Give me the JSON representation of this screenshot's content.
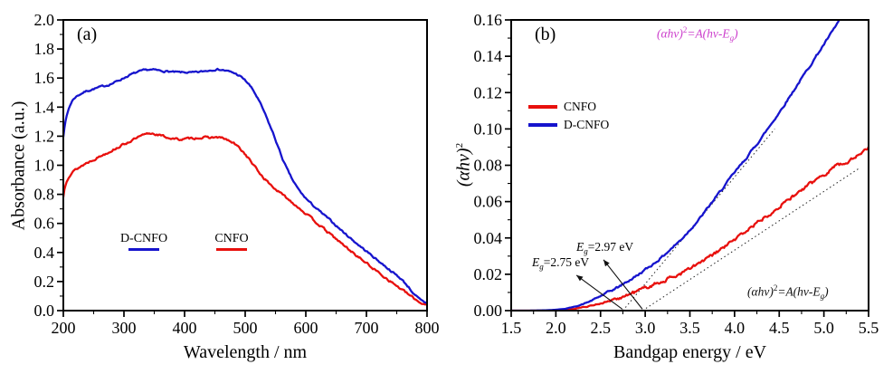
{
  "figure": {
    "background": "#ffffff",
    "frame_color": "#000000"
  },
  "colors": {
    "red": "#e8100d",
    "blue": "#1614cd",
    "magenta": "#cc3ecc",
    "black": "#111111"
  },
  "panel_a": {
    "letter": "(a)",
    "xlabel": "Wavelength / nm",
    "ylabel": "Absorbance (a.u.)",
    "legend": {
      "dcnfo": "D-CNFO",
      "cnfo": "CNFO"
    }
  },
  "panel_b": {
    "letter": "(b)",
    "xlabel": "Bandgap energy / eV",
    "ylabel_main": "(αhv)",
    "ylabel_sup": "2",
    "legend": {
      "cnfo": "CNFO",
      "dcnfo": "D-CNFO"
    },
    "formula_top": {
      "p1": "(αhv)",
      "sup": "2",
      "p2": "=A(hv-E",
      "sub": "g",
      "p3": ")"
    },
    "formula_bottom": {
      "p1": "(αhv)",
      "sup": "2",
      "p2": "=A(hv-E",
      "sub": "g",
      "p3": ")"
    },
    "eg1": {
      "sym": "E",
      "sub": "g",
      "val": "=2.75 eV"
    },
    "eg2": {
      "sym": "E",
      "sub": "g",
      "val": "=2.97 eV"
    }
  },
  "chart_data": [
    {
      "type": "line",
      "panel": "a",
      "title": "",
      "xlabel": "Wavelength / nm",
      "ylabel": "Absorbance (a.u.)",
      "xlim": [
        200,
        800
      ],
      "ylim": [
        0,
        2
      ],
      "grid": false,
      "legend_position": "inside lower-left",
      "x_major": [
        200,
        300,
        400,
        500,
        600,
        700,
        800
      ],
      "x_labels": [
        "200",
        "300",
        "400",
        "500",
        "600",
        "700",
        "800"
      ],
      "x_minor_step": 50,
      "y_major": [
        0,
        0.2,
        0.4,
        0.6,
        0.8,
        1.0,
        1.2,
        1.4,
        1.6,
        1.8,
        2.0
      ],
      "y_labels": [
        "0.0",
        "0.2",
        "0.4",
        "0.6",
        "0.8",
        "1.0",
        "1.2",
        "1.4",
        "1.6",
        "1.8",
        "2.0"
      ],
      "y_minor_step": 0.1,
      "series": [
        {
          "name": "CNFO",
          "color": "#e8100d",
          "noise": 0.0055,
          "seed": 13,
          "points": [
            [
              200,
              0.78
            ],
            [
              202,
              0.84
            ],
            [
              205,
              0.89
            ],
            [
              209,
              0.925
            ],
            [
              214,
              0.95
            ],
            [
              220,
              0.97
            ],
            [
              228,
              0.99
            ],
            [
              238,
              1.015
            ],
            [
              250,
              1.04
            ],
            [
              262,
              1.065
            ],
            [
              274,
              1.09
            ],
            [
              286,
              1.115
            ],
            [
              298,
              1.14
            ],
            [
              310,
              1.165
            ],
            [
              320,
              1.185
            ],
            [
              330,
              1.203
            ],
            [
              338,
              1.215
            ],
            [
              346,
              1.22
            ],
            [
              354,
              1.213
            ],
            [
              362,
              1.203
            ],
            [
              370,
              1.193
            ],
            [
              378,
              1.185
            ],
            [
              386,
              1.18
            ],
            [
              394,
              1.178
            ],
            [
              402,
              1.18
            ],
            [
              410,
              1.185
            ],
            [
              418,
              1.188
            ],
            [
              426,
              1.19
            ],
            [
              434,
              1.19
            ],
            [
              442,
              1.19
            ],
            [
              450,
              1.193
            ],
            [
              458,
              1.19
            ],
            [
              466,
              1.182
            ],
            [
              474,
              1.166
            ],
            [
              482,
              1.148
            ],
            [
              490,
              1.12
            ],
            [
              498,
              1.086
            ],
            [
              506,
              1.045
            ],
            [
              514,
              1.0
            ],
            [
              522,
              0.955
            ],
            [
              530,
              0.915
            ],
            [
              538,
              0.882
            ],
            [
              546,
              0.85
            ],
            [
              554,
              0.822
            ],
            [
              562,
              0.796
            ],
            [
              570,
              0.77
            ],
            [
              580,
              0.737
            ],
            [
              590,
              0.703
            ],
            [
              600,
              0.668
            ],
            [
              612,
              0.625
            ],
            [
              624,
              0.583
            ],
            [
              636,
              0.54
            ],
            [
              648,
              0.5
            ],
            [
              660,
              0.458
            ],
            [
              672,
              0.418
            ],
            [
              684,
              0.378
            ],
            [
              696,
              0.34
            ],
            [
              708,
              0.3
            ],
            [
              720,
              0.262
            ],
            [
              732,
              0.225
            ],
            [
              744,
              0.188
            ],
            [
              756,
              0.152
            ],
            [
              768,
              0.115
            ],
            [
              778,
              0.085
            ],
            [
              786,
              0.062
            ],
            [
              792,
              0.05
            ],
            [
              800,
              0.042
            ]
          ]
        },
        {
          "name": "D-CNFO",
          "color": "#1614cd",
          "noise": 0.0045,
          "seed": 7,
          "points": [
            [
              200,
              1.2
            ],
            [
              202,
              1.27
            ],
            [
              205,
              1.33
            ],
            [
              209,
              1.39
            ],
            [
              214,
              1.44
            ],
            [
              220,
              1.47
            ],
            [
              228,
              1.49
            ],
            [
              238,
              1.51
            ],
            [
              250,
              1.525
            ],
            [
              262,
              1.54
            ],
            [
              272,
              1.55
            ],
            [
              282,
              1.565
            ],
            [
              292,
              1.585
            ],
            [
              302,
              1.605
            ],
            [
              312,
              1.625
            ],
            [
              322,
              1.64
            ],
            [
              332,
              1.652
            ],
            [
              342,
              1.658
            ],
            [
              352,
              1.655
            ],
            [
              362,
              1.649
            ],
            [
              372,
              1.646
            ],
            [
              382,
              1.641
            ],
            [
              392,
              1.639
            ],
            [
              402,
              1.639
            ],
            [
              412,
              1.637
            ],
            [
              422,
              1.64
            ],
            [
              432,
              1.647
            ],
            [
              442,
              1.654
            ],
            [
              450,
              1.66
            ],
            [
              458,
              1.659
            ],
            [
              466,
              1.653
            ],
            [
              474,
              1.644
            ],
            [
              482,
              1.634
            ],
            [
              490,
              1.617
            ],
            [
              498,
              1.592
            ],
            [
              506,
              1.558
            ],
            [
              514,
              1.51
            ],
            [
              522,
              1.45
            ],
            [
              530,
              1.38
            ],
            [
              538,
              1.3
            ],
            [
              546,
              1.22
            ],
            [
              554,
              1.13
            ],
            [
              562,
              1.04
            ],
            [
              570,
              0.965
            ],
            [
              578,
              0.9
            ],
            [
              586,
              0.845
            ],
            [
              594,
              0.8
            ],
            [
              604,
              0.755
            ],
            [
              614,
              0.716
            ],
            [
              626,
              0.672
            ],
            [
              638,
              0.63
            ],
            [
              650,
              0.585
            ],
            [
              662,
              0.54
            ],
            [
              674,
              0.497
            ],
            [
              686,
              0.455
            ],
            [
              698,
              0.415
            ],
            [
              710,
              0.375
            ],
            [
              722,
              0.335
            ],
            [
              734,
              0.295
            ],
            [
              746,
              0.255
            ],
            [
              758,
              0.215
            ],
            [
              770,
              0.16
            ],
            [
              780,
              0.105
            ],
            [
              790,
              0.07
            ],
            [
              800,
              0.05
            ]
          ]
        }
      ]
    },
    {
      "type": "line",
      "panel": "b",
      "title": "",
      "xlabel": "Bandgap energy / eV",
      "ylabel": "(αhv)^2",
      "xlim": [
        1.5,
        5.5
      ],
      "ylim": [
        0,
        0.16
      ],
      "grid": false,
      "legend_position": "inside upper-left",
      "x_major": [
        1.5,
        2.0,
        2.5,
        3.0,
        3.5,
        4.0,
        4.5,
        5.0,
        5.5
      ],
      "x_labels": [
        "1.5",
        "2.0",
        "2.5",
        "3.0",
        "3.5",
        "4.0",
        "4.5",
        "5.0",
        "5.5"
      ],
      "x_minor_step": 0.25,
      "y_major": [
        0,
        0.02,
        0.04,
        0.06,
        0.08,
        0.1,
        0.12,
        0.14,
        0.16
      ],
      "y_labels": [
        "0.00",
        "0.02",
        "0.04",
        "0.06",
        "0.08",
        "0.10",
        "0.12",
        "0.14",
        "0.16"
      ],
      "y_minor_step": 0.01,
      "bandgaps": {
        "CNFO_eV": 2.97,
        "D-CNFO_eV": 2.75
      },
      "guide_lines": [
        {
          "x1": 2.75,
          "y1": 0,
          "x2": 4.45,
          "y2": 0.1,
          "style": "dotted"
        },
        {
          "x1": 2.97,
          "y1": 0,
          "x2": 5.4,
          "y2": 0.0785,
          "style": "dotted"
        }
      ],
      "arrows": [
        {
          "x1": 2.745,
          "y1": 0.0008,
          "x2": 2.23,
          "y2": 0.0195
        },
        {
          "x1": 2.968,
          "y1": 0.0008,
          "x2": 2.533,
          "y2": 0.028
        }
      ],
      "series": [
        {
          "name": "CNFO",
          "color": "#e8100d",
          "noise": 0.00075,
          "seed": 21,
          "points": [
            [
              1.5,
              0
            ],
            [
              1.8,
              0
            ],
            [
              2.0,
              0.0002
            ],
            [
              2.1,
              0.0005
            ],
            [
              2.2,
              0.001
            ],
            [
              2.3,
              0.0018
            ],
            [
              2.4,
              0.0028
            ],
            [
              2.5,
              0.004
            ],
            [
              2.6,
              0.0053
            ],
            [
              2.7,
              0.0068
            ],
            [
              2.8,
              0.0085
            ],
            [
              2.9,
              0.0105
            ],
            [
              3.0,
              0.0125
            ],
            [
              3.1,
              0.0145
            ],
            [
              3.2,
              0.0163
            ],
            [
              3.3,
              0.0183
            ],
            [
              3.4,
              0.0205
            ],
            [
              3.5,
              0.023
            ],
            [
              3.6,
              0.0258
            ],
            [
              3.7,
              0.0288
            ],
            [
              3.8,
              0.032
            ],
            [
              3.9,
              0.0355
            ],
            [
              4.0,
              0.039
            ],
            [
              4.1,
              0.0428
            ],
            [
              4.2,
              0.0465
            ],
            [
              4.3,
              0.05
            ],
            [
              4.4,
              0.0538
            ],
            [
              4.5,
              0.0575
            ],
            [
              4.6,
              0.061
            ],
            [
              4.7,
              0.0645
            ],
            [
              4.8,
              0.068
            ],
            [
              4.9,
              0.0715
            ],
            [
              5.0,
              0.075
            ],
            [
              5.1,
              0.0785
            ],
            [
              5.15,
              0.0815
            ],
            [
              5.2,
              0.08
            ],
            [
              5.3,
              0.0835
            ],
            [
              5.4,
              0.086
            ],
            [
              5.5,
              0.09
            ]
          ]
        },
        {
          "name": "D-CNFO",
          "color": "#1614cd",
          "noise": 0.00045,
          "seed": 42,
          "points": [
            [
              1.5,
              0
            ],
            [
              1.7,
              0
            ],
            [
              1.9,
              0.0002
            ],
            [
              2.0,
              0.0005
            ],
            [
              2.1,
              0.001
            ],
            [
              2.2,
              0.002
            ],
            [
              2.3,
              0.0035
            ],
            [
              2.4,
              0.0055
            ],
            [
              2.5,
              0.008
            ],
            [
              2.6,
              0.0105
            ],
            [
              2.7,
              0.013
            ],
            [
              2.8,
              0.016
            ],
            [
              2.9,
              0.019
            ],
            [
              3.0,
              0.0225
            ],
            [
              3.1,
              0.026
            ],
            [
              3.2,
              0.03
            ],
            [
              3.3,
              0.0345
            ],
            [
              3.4,
              0.039
            ],
            [
              3.5,
              0.0445
            ],
            [
              3.6,
              0.05
            ],
            [
              3.7,
              0.0565
            ],
            [
              3.8,
              0.063
            ],
            [
              3.9,
              0.0695
            ],
            [
              4.0,
              0.076
            ],
            [
              4.1,
              0.082
            ],
            [
              4.2,
              0.0885
            ],
            [
              4.3,
              0.095
            ],
            [
              4.4,
              0.102
            ],
            [
              4.5,
              0.109
            ],
            [
              4.6,
              0.1165
            ],
            [
              4.7,
              0.124
            ],
            [
              4.8,
              0.1315
            ],
            [
              4.9,
              0.139
            ],
            [
              5.0,
              0.1465
            ],
            [
              5.1,
              0.154
            ],
            [
              5.2,
              0.162
            ],
            [
              5.25,
              0.166
            ]
          ]
        }
      ]
    }
  ]
}
